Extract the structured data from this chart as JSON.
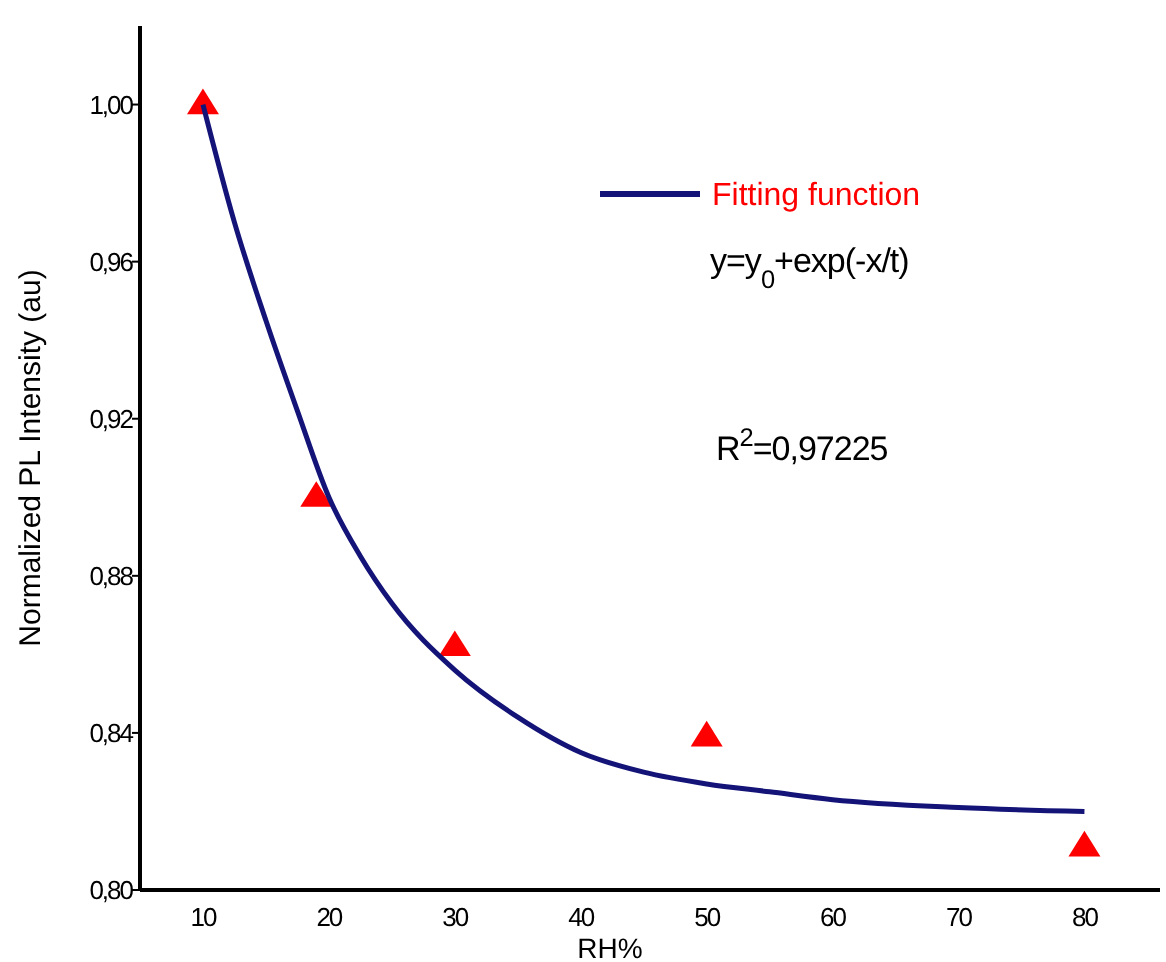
{
  "chart_data": {
    "type": "scatter",
    "xlabel": "RH%",
    "ylabel": "Normalized PL Intensity (au)",
    "xlim": [
      5,
      86
    ],
    "xticks": [
      10,
      20,
      30,
      40,
      50,
      60,
      70,
      80
    ],
    "ylim": [
      0.8,
      1.02
    ],
    "yticks": [
      {
        "value": 0.8,
        "label": "0,80"
      },
      {
        "value": 0.84,
        "label": "0,84"
      },
      {
        "value": 0.88,
        "label": "0,88"
      },
      {
        "value": 0.92,
        "label": "0,92"
      },
      {
        "value": 0.96,
        "label": "0,96"
      },
      {
        "value": 1.0,
        "label": "1,00"
      }
    ],
    "grid": false,
    "legend": "top right",
    "series": [
      {
        "color": "#ff0000",
        "marker": "triangle",
        "x": [
          10,
          19,
          30,
          50,
          80
        ],
        "values": [
          1.0,
          0.9,
          0.862,
          0.839,
          0.811
        ]
      },
      {
        "type": "line",
        "name": "Fitting function",
        "color": "#141478",
        "marker": "none",
        "line_style": "solid",
        "x": [
          10,
          12.5,
          15,
          17.5,
          20,
          22.5,
          25,
          30,
          35,
          40,
          45,
          50,
          55,
          60,
          70,
          80
        ],
        "values": [
          1.0,
          0.97,
          0.945,
          0.922,
          0.9,
          0.885,
          0.873,
          0.856,
          0.844,
          0.835,
          0.83,
          0.827,
          0.825,
          0.823,
          0.821,
          0.82
        ]
      }
    ],
    "annotations": [
      "y=y$_{0}$+exp(-x/t)",
      "R$^{2}$=0,97225"
    ]
  }
}
